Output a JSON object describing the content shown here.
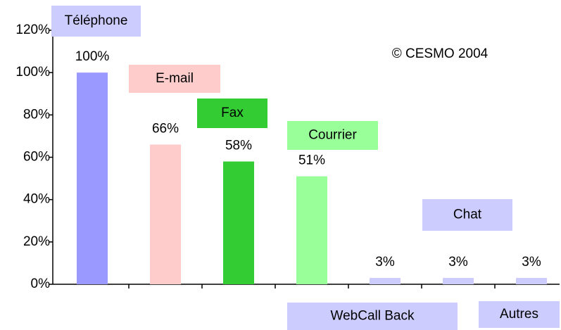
{
  "chart_data": {
    "type": "bar",
    "annotation": "© CESMO 2004",
    "categories": [
      "Téléphone",
      "E-mail",
      "Fax",
      "Courrier",
      "WebCall Back",
      "Chat",
      "Autres"
    ],
    "values": [
      100,
      66,
      58,
      51,
      3,
      3,
      3
    ],
    "value_labels": [
      "100%",
      "66%",
      "58%",
      "51%",
      "3%",
      "3%",
      "3%"
    ],
    "colors": [
      "#9999ff",
      "#ffcccc",
      "#33cc33",
      "#99ff99",
      "#ccccff",
      "#ccccff",
      "#ccccff"
    ],
    "label_colors": [
      "#ccccff",
      "#ffcccc",
      "#33cc33",
      "#99ff99",
      "#ccccff",
      "#ccccff",
      "#ccccff"
    ],
    "ylim": [
      0,
      120
    ],
    "yticks": [
      {
        "value": 0,
        "label": "0%"
      },
      {
        "value": 20,
        "label": "20%"
      },
      {
        "value": 40,
        "label": "40%"
      },
      {
        "value": 60,
        "label": "60%"
      },
      {
        "value": 80,
        "label": "80%"
      },
      {
        "value": 100,
        "label": "100%"
      },
      {
        "value": 120,
        "label": "120%"
      }
    ]
  }
}
